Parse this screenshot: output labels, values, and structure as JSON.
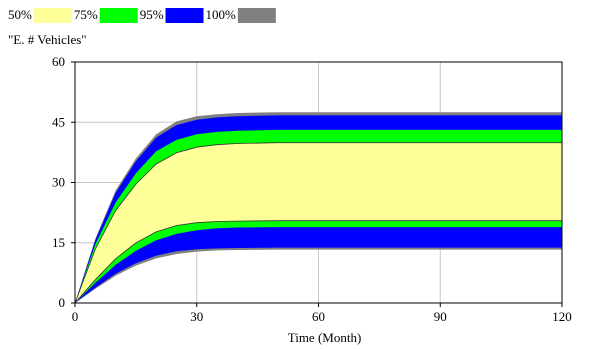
{
  "chart_data": {
    "type": "area",
    "title": "\"E. # Vehicles\"",
    "xlabel": "Time (Month)",
    "ylabel": "",
    "xlim": [
      0,
      120
    ],
    "ylim": [
      0,
      60
    ],
    "xticks": [
      0,
      30,
      60,
      90,
      120
    ],
    "yticks": [
      0,
      15,
      30,
      45,
      60
    ],
    "grid": true,
    "legend_position": "top-left",
    "legend": [
      {
        "label": "50%",
        "color": "#ffff99"
      },
      {
        "label": "75%",
        "color": "#00ff00"
      },
      {
        "label": "95%",
        "color": "#0000ff"
      },
      {
        "label": "100%",
        "color": "#808080"
      }
    ],
    "x": [
      0,
      5,
      10,
      15,
      20,
      25,
      30,
      35,
      40,
      50,
      60,
      70,
      80,
      90,
      100,
      110,
      120
    ],
    "bands": [
      {
        "name": "100%",
        "color": "#808080",
        "lower": [
          0,
          3.5,
          6.8,
          9.3,
          11.1,
          12.2,
          12.8,
          13.1,
          13.2,
          13.3,
          13.3,
          13.3,
          13.3,
          13.3,
          13.3,
          13.3,
          13.3
        ],
        "upper": [
          0,
          16,
          28,
          36,
          42,
          45.2,
          46.5,
          47,
          47.3,
          47.5,
          47.5,
          47.5,
          47.5,
          47.5,
          47.5,
          47.5,
          47.5
        ]
      },
      {
        "name": "95%",
        "color": "#0000ff",
        "lower": [
          0,
          3.8,
          7.3,
          9.9,
          11.8,
          12.9,
          13.4,
          13.6,
          13.7,
          13.8,
          13.8,
          13.8,
          13.8,
          13.8,
          13.8,
          13.8,
          13.8
        ],
        "upper": [
          0,
          15.6,
          27.4,
          35.3,
          41.2,
          44.3,
          45.6,
          46.2,
          46.5,
          46.7,
          46.7,
          46.7,
          46.7,
          46.7,
          46.7,
          46.7,
          46.7
        ]
      },
      {
        "name": "75%",
        "color": "#00ff00",
        "lower": [
          0,
          5,
          9.5,
          13,
          15.6,
          17.2,
          18.1,
          18.6,
          18.8,
          18.9,
          18.9,
          18.9,
          18.9,
          18.9,
          18.9,
          18.9,
          18.9
        ],
        "upper": [
          0,
          14.6,
          25,
          32.3,
          37.8,
          40.6,
          42,
          42.6,
          42.9,
          43.1,
          43.1,
          43.1,
          43.1,
          43.1,
          43.1,
          43.1,
          43.1
        ]
      },
      {
        "name": "50%",
        "color": "#ffff99",
        "lower": [
          0,
          5.8,
          11,
          15,
          17.7,
          19.3,
          20,
          20.3,
          20.4,
          20.5,
          20.5,
          20.5,
          20.5,
          20.5,
          20.5,
          20.5,
          20.5
        ],
        "upper": [
          0,
          13.4,
          23,
          29.6,
          34.6,
          37.4,
          38.8,
          39.4,
          39.7,
          39.9,
          39.9,
          39.9,
          39.9,
          39.9,
          39.9,
          39.9,
          39.9
        ]
      }
    ]
  }
}
